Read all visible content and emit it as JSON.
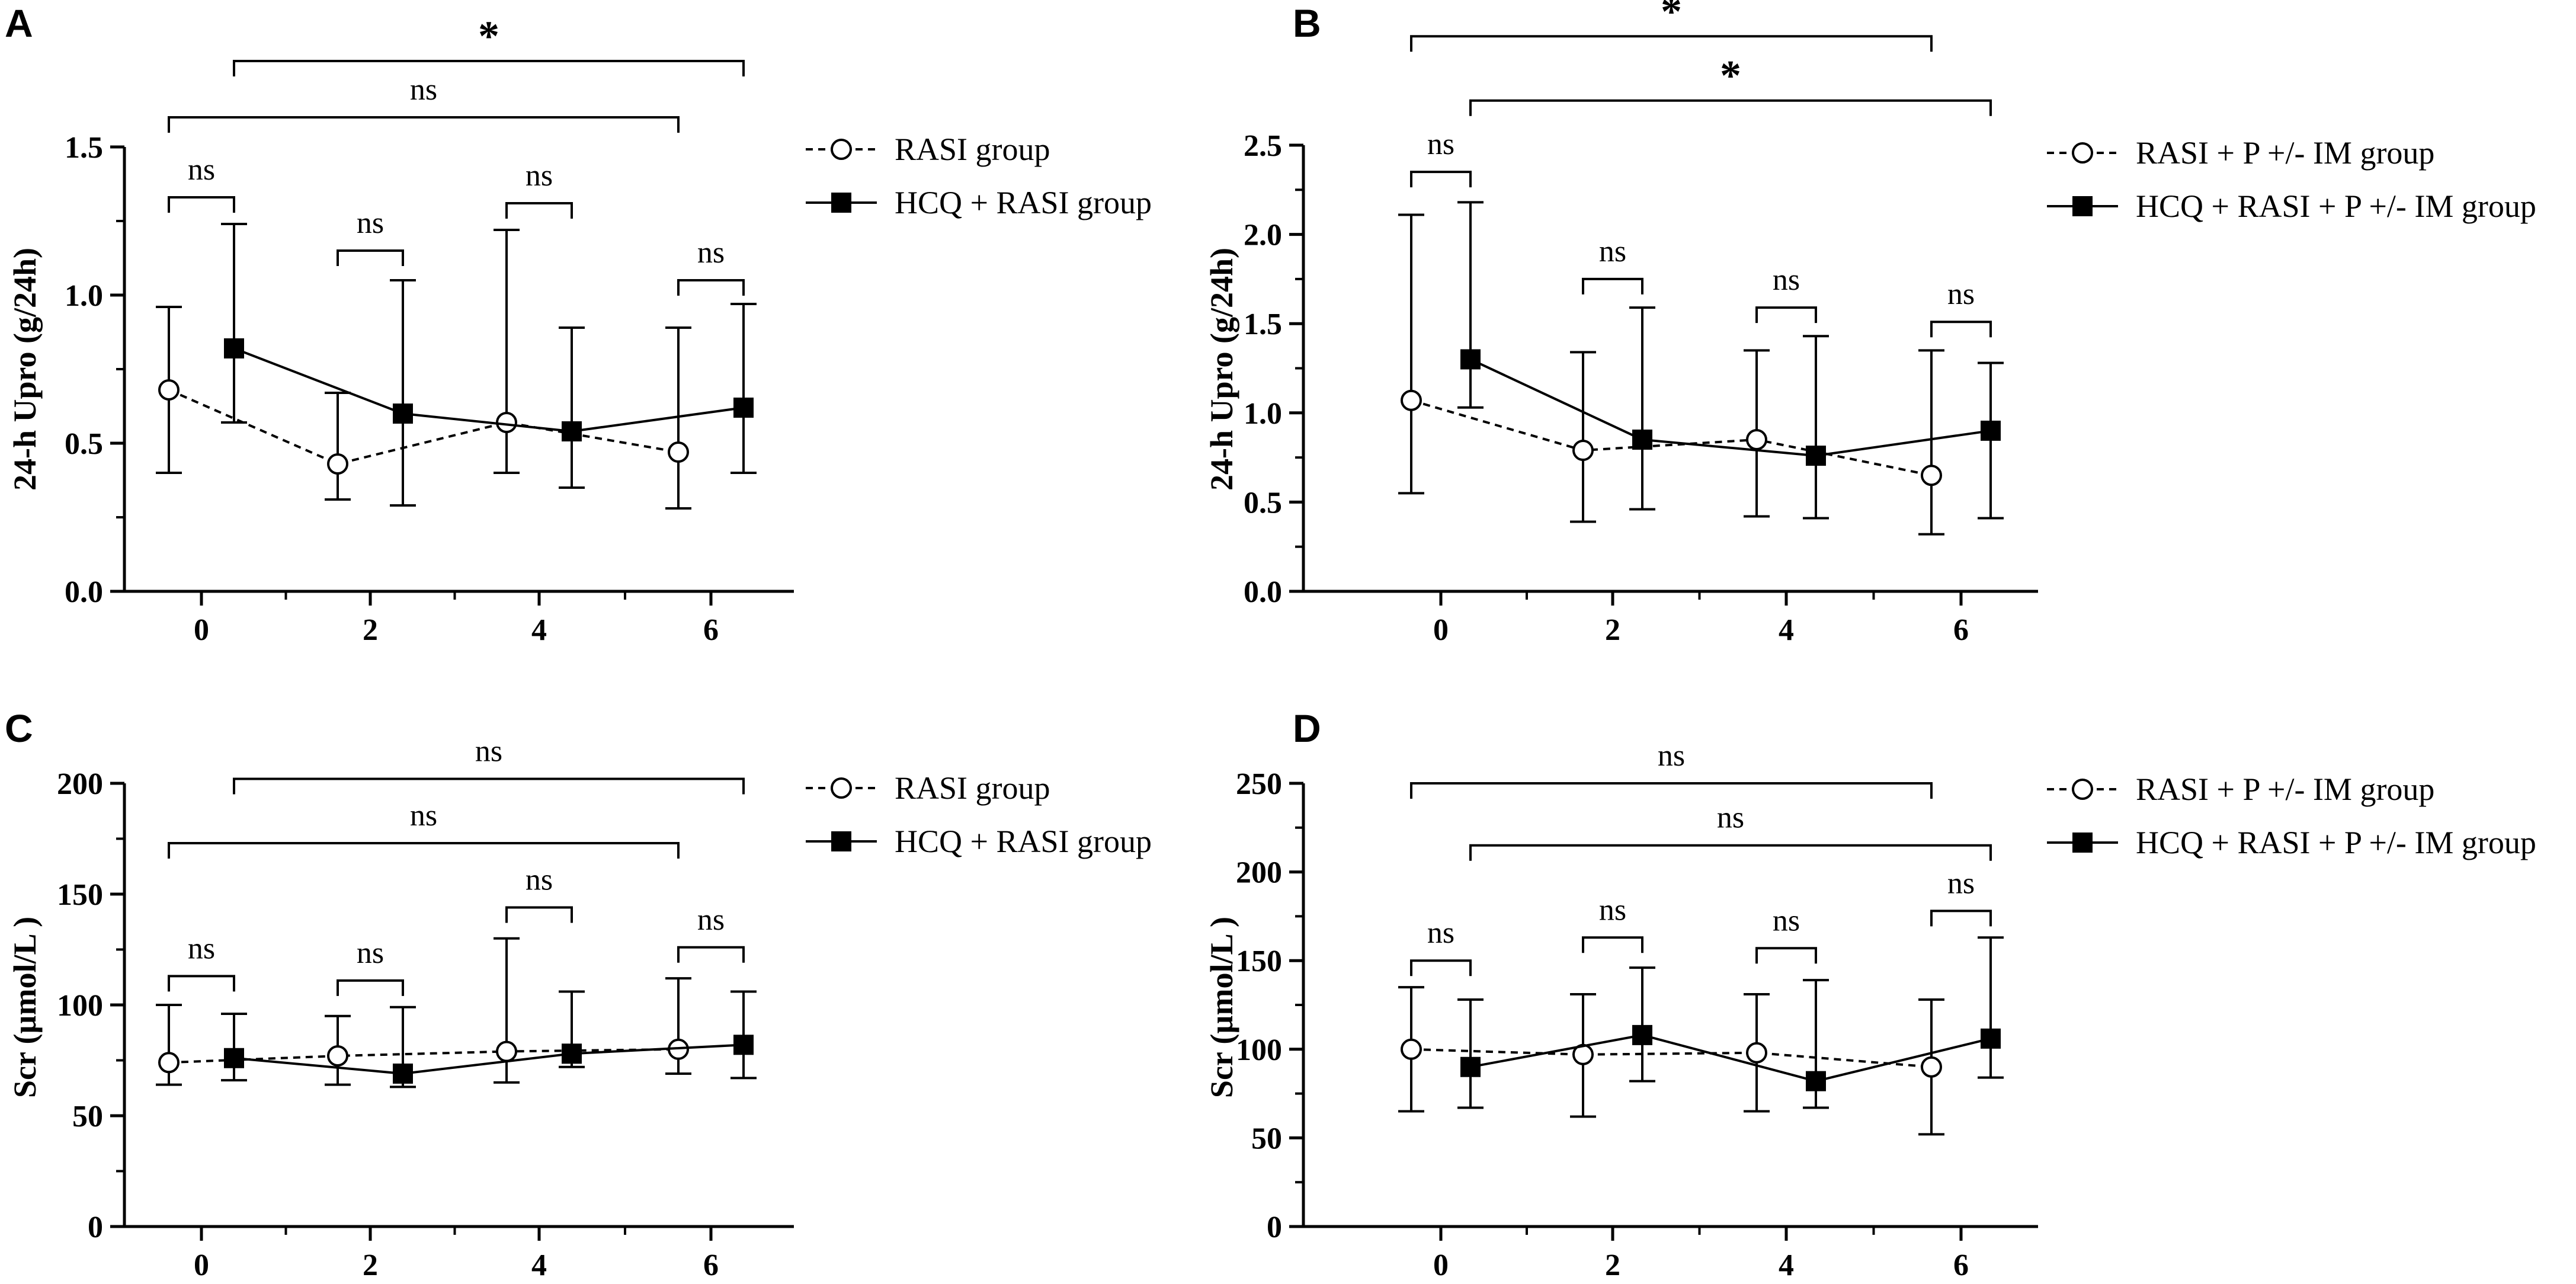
{
  "chart_data": [
    {
      "panel": "A",
      "type": "line",
      "ylabel": "24-h Upro  (g/24h)",
      "xlabel": "",
      "ylim": [
        0,
        1.5
      ],
      "yticks": [
        0.0,
        0.5,
        1.0,
        1.5
      ],
      "ytick_labels": [
        "0.0",
        "0.5",
        "1.0",
        "1.5"
      ],
      "xticks": [
        0,
        2,
        4,
        6
      ],
      "xtick_labels": [
        "0",
        "2",
        "4",
        "6"
      ],
      "legend_position": "top-right",
      "series": [
        {
          "name": "RASI group",
          "marker": "open-circle",
          "line": "dashed",
          "x": [
            0,
            2,
            4,
            6
          ],
          "values": [
            0.68,
            0.43,
            0.57,
            0.47
          ],
          "err_high": [
            0.96,
            0.67,
            1.22,
            0.89
          ],
          "err_low": [
            0.4,
            0.31,
            0.4,
            0.28
          ]
        },
        {
          "name": "HCQ + RASI group",
          "marker": "filled-square",
          "line": "solid",
          "x": [
            0,
            2,
            4,
            6
          ],
          "values": [
            0.82,
            0.6,
            0.54,
            0.62
          ],
          "err_high": [
            1.24,
            1.05,
            0.89,
            0.97
          ],
          "err_low": [
            0.57,
            0.29,
            0.35,
            0.4
          ]
        }
      ],
      "comparisons": [
        {
          "label": "ns",
          "at": 0,
          "level": 1.33
        },
        {
          "label": "ns",
          "at": 2,
          "level": 1.15
        },
        {
          "label": "ns",
          "at": 4,
          "level": 1.31
        },
        {
          "label": "ns",
          "at": 6,
          "level": 1.05
        }
      ],
      "long_comparisons": [
        {
          "label": "ns",
          "series": "RASI group",
          "from": 0,
          "to": 6,
          "level": 1.6
        },
        {
          "label": "*",
          "series": "HCQ + RASI group",
          "from": 0,
          "to": 6,
          "level": 1.79
        }
      ]
    },
    {
      "panel": "B",
      "type": "line",
      "ylabel": "24-h Upro  (g/24h)",
      "xlabel": "",
      "ylim": [
        0,
        2.5
      ],
      "yticks": [
        0.0,
        0.5,
        1.0,
        1.5,
        2.0,
        2.5
      ],
      "ytick_labels": [
        "0.0",
        "0.5",
        "1.0",
        "1.5",
        "2.0",
        "2.5"
      ],
      "xticks": [
        0,
        2,
        4,
        6
      ],
      "xtick_labels": [
        "0",
        "2",
        "4",
        "6"
      ],
      "legend_position": "top-right",
      "series": [
        {
          "name": "RASI + P +/- IM  group",
          "marker": "open-circle",
          "line": "dashed",
          "x": [
            0,
            2,
            4,
            6
          ],
          "values": [
            1.07,
            0.79,
            0.85,
            0.65
          ],
          "err_high": [
            2.11,
            1.34,
            1.35,
            1.35
          ],
          "err_low": [
            0.55,
            0.39,
            0.42,
            0.32
          ]
        },
        {
          "name": "HCQ + RASI + P +/- IM group",
          "marker": "filled-square",
          "line": "solid",
          "x": [
            0,
            2,
            4,
            6
          ],
          "values": [
            1.3,
            0.85,
            0.76,
            0.9
          ],
          "err_high": [
            2.18,
            1.59,
            1.43,
            1.28
          ],
          "err_low": [
            1.03,
            0.46,
            0.41,
            0.41
          ]
        }
      ],
      "comparisons": [
        {
          "label": "ns",
          "at": 0,
          "level": 2.35
        },
        {
          "label": "ns",
          "at": 2,
          "level": 1.75
        },
        {
          "label": "ns",
          "at": 4,
          "level": 1.59
        },
        {
          "label": "ns",
          "at": 6,
          "level": 1.51
        }
      ],
      "long_comparisons": [
        {
          "label": "*",
          "series": "HCQ + RASI + P +/- IM group",
          "from": 0,
          "to": 6,
          "level": 2.75
        },
        {
          "label": "*",
          "series": "RASI + P +/- IM  group",
          "from": 0,
          "to": 6,
          "level": 3.11
        }
      ]
    },
    {
      "panel": "C",
      "type": "line",
      "ylabel": "Scr (µmol/L )",
      "xlabel": "",
      "ylim": [
        0,
        200
      ],
      "yticks": [
        0,
        50,
        100,
        150,
        200
      ],
      "ytick_labels": [
        "0",
        "50",
        "100",
        "150",
        "200"
      ],
      "xticks": [
        0,
        2,
        4,
        6
      ],
      "xtick_labels": [
        "0",
        "2",
        "4",
        "6"
      ],
      "legend_position": "top-right",
      "series": [
        {
          "name": "RASI group",
          "marker": "open-circle",
          "line": "dashed",
          "x": [
            0,
            2,
            4,
            6
          ],
          "values": [
            74,
            77,
            79,
            80
          ],
          "err_high": [
            100,
            95,
            130,
            112
          ],
          "err_low": [
            64,
            64,
            65,
            69
          ]
        },
        {
          "name": "HCQ + RASI group",
          "marker": "filled-square",
          "line": "solid",
          "x": [
            0,
            2,
            4,
            6
          ],
          "values": [
            76,
            69,
            78,
            82
          ],
          "err_high": [
            96,
            99,
            106,
            106
          ],
          "err_low": [
            66,
            63,
            72,
            67
          ]
        }
      ],
      "comparisons": [
        {
          "label": "ns",
          "at": 0,
          "level": 113
        },
        {
          "label": "ns",
          "at": 2,
          "level": 111
        },
        {
          "label": "ns",
          "at": 4,
          "level": 144
        },
        {
          "label": "ns",
          "at": 6,
          "level": 126
        }
      ],
      "long_comparisons": [
        {
          "label": "ns",
          "series": "RASI group",
          "from": 0,
          "to": 6,
          "level": 173
        },
        {
          "label": "ns",
          "series": "HCQ + RASI group",
          "from": 0,
          "to": 6,
          "level": 202
        }
      ]
    },
    {
      "panel": "D",
      "type": "line",
      "ylabel": "Scr (µmol/L )",
      "xlabel": "",
      "ylim": [
        0,
        250
      ],
      "yticks": [
        0,
        50,
        100,
        150,
        200,
        250
      ],
      "ytick_labels": [
        "0",
        "50",
        "100",
        "150",
        "200",
        "250"
      ],
      "xticks": [
        0,
        2,
        4,
        6
      ],
      "xtick_labels": [
        "0",
        "2",
        "4",
        "6"
      ],
      "legend_position": "top-right",
      "series": [
        {
          "name": "RASI + P +/- IM  group",
          "marker": "open-circle",
          "line": "dashed",
          "x": [
            0,
            2,
            4,
            6
          ],
          "values": [
            100,
            97,
            98,
            90
          ],
          "err_high": [
            135,
            131,
            131,
            128
          ],
          "err_low": [
            65,
            62,
            65,
            52
          ]
        },
        {
          "name": "HCQ + RASI + P +/- IM group",
          "marker": "filled-square",
          "line": "solid",
          "x": [
            0,
            2,
            4,
            6
          ],
          "values": [
            90,
            108,
            82,
            106
          ],
          "err_high": [
            128,
            146,
            139,
            163
          ],
          "err_low": [
            67,
            82,
            67,
            84
          ]
        }
      ],
      "comparisons": [
        {
          "label": "ns",
          "at": 0,
          "level": 150
        },
        {
          "label": "ns",
          "at": 2,
          "level": 163
        },
        {
          "label": "ns",
          "at": 4,
          "level": 157
        },
        {
          "label": "ns",
          "at": 6,
          "level": 178
        }
      ],
      "long_comparisons": [
        {
          "label": "ns",
          "series": "HCQ + RASI + P +/- IM group",
          "from": 0,
          "to": 6,
          "level": 215
        },
        {
          "label": "ns",
          "series": "RASI + P +/- IM  group",
          "from": 0,
          "to": 6,
          "level": 250
        }
      ]
    }
  ]
}
